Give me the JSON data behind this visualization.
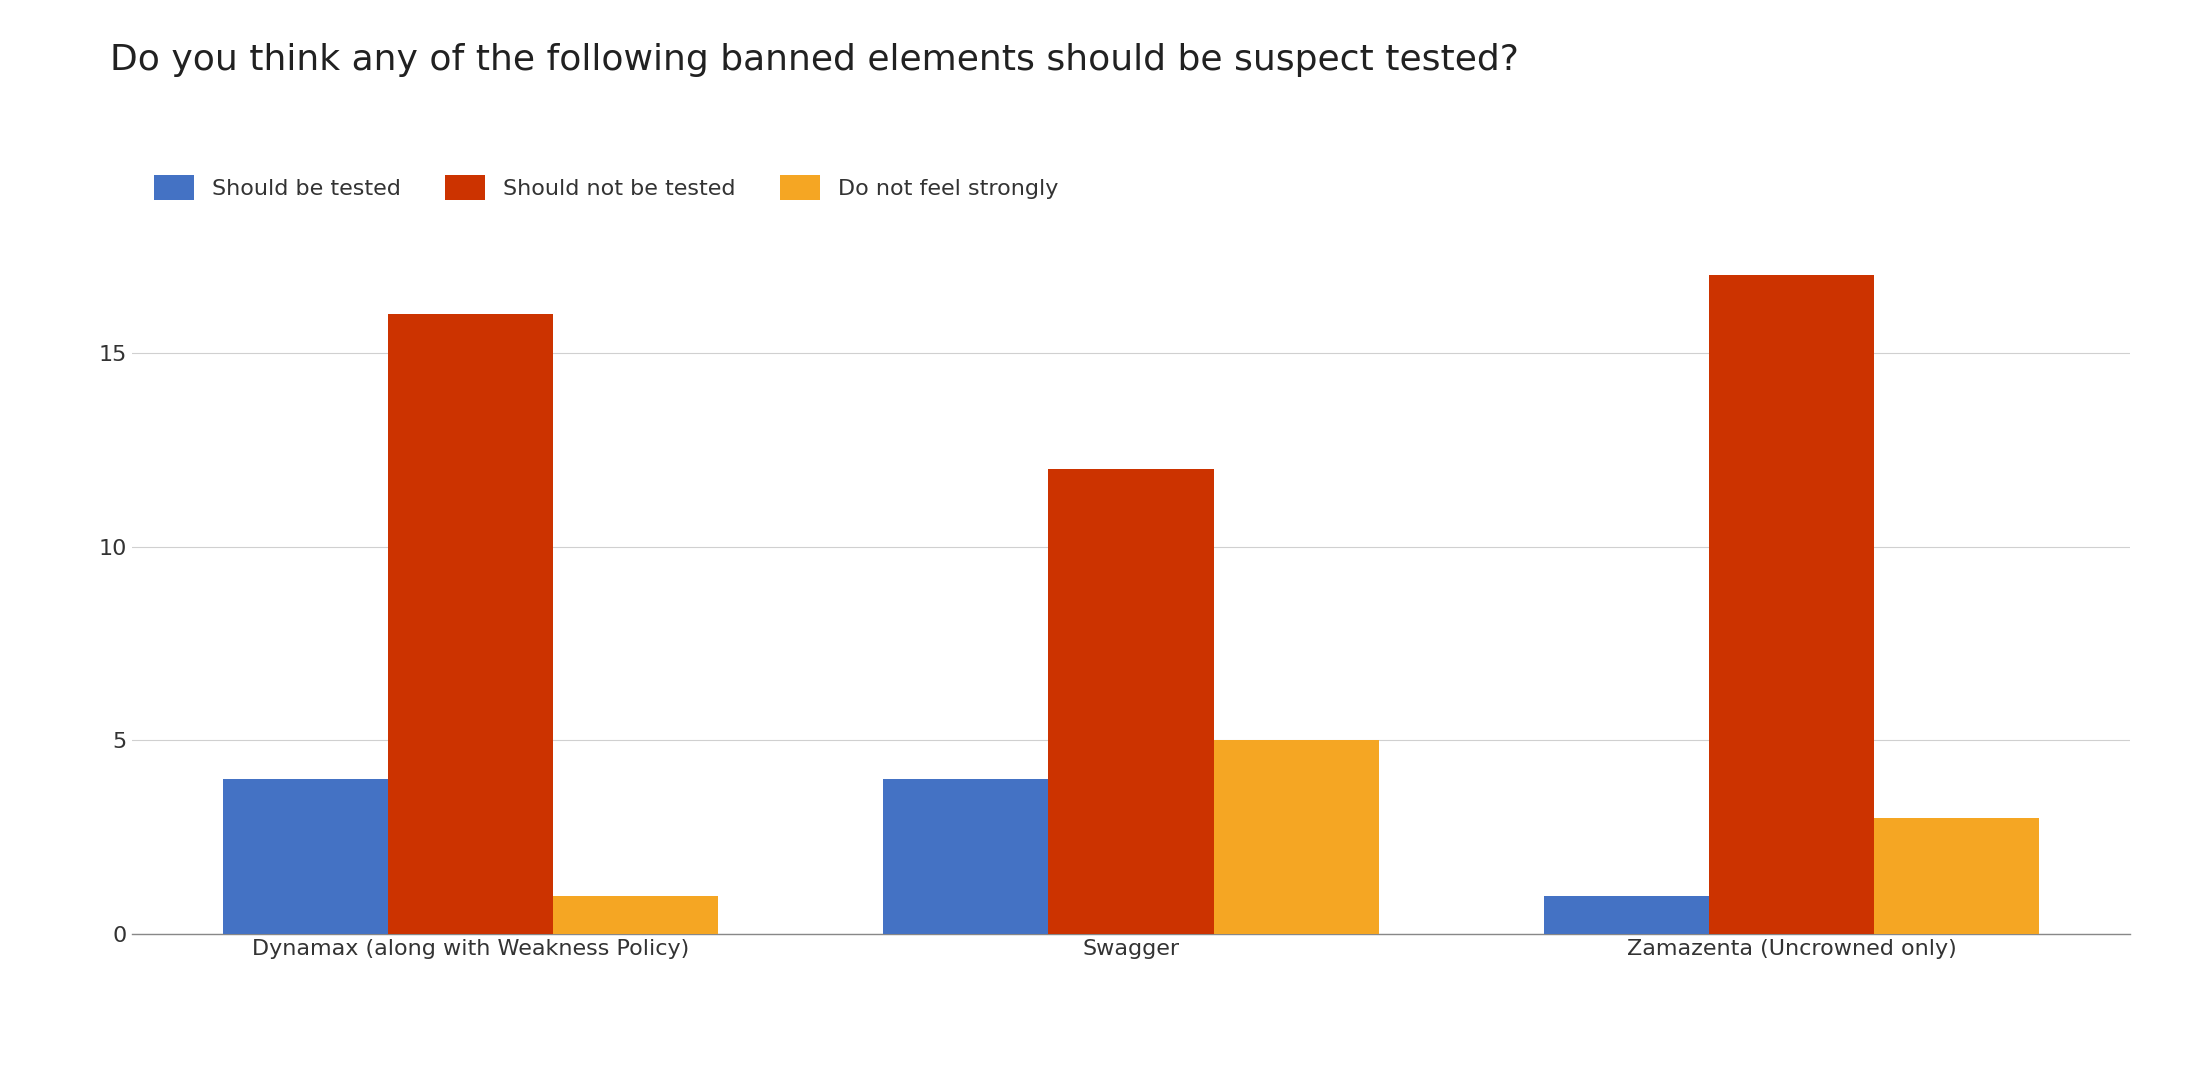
{
  "title": "Do you think any of the following banned elements should be suspect tested?",
  "categories": [
    "Dynamax (along with Weakness Policy)",
    "Swagger",
    "Zamazenta (Uncrowned only)"
  ],
  "series": [
    {
      "label": "Should be tested",
      "color": "#4472c4",
      "values": [
        4,
        4,
        1
      ]
    },
    {
      "label": "Should not be tested",
      "color": "#cc3300",
      "values": [
        16,
        12,
        17
      ]
    },
    {
      "label": "Do not feel strongly",
      "color": "#f5a623",
      "values": [
        1,
        5,
        3
      ]
    }
  ],
  "ylim": [
    0,
    18
  ],
  "yticks": [
    0,
    5,
    10,
    15
  ],
  "background_color": "#ffffff",
  "title_fontsize": 26,
  "tick_fontsize": 16,
  "legend_fontsize": 16,
  "bar_width": 0.25,
  "grid_color": "#d0d0d0",
  "title_color": "#212121",
  "axis_label_color": "#333333"
}
